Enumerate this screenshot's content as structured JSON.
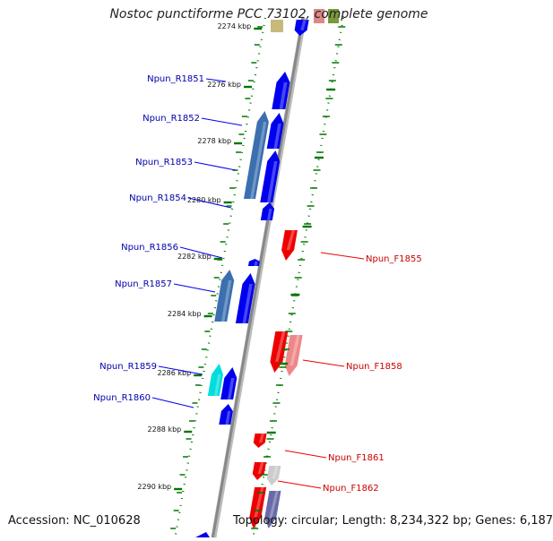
{
  "title": "Nostoc punctiforme PCC 73102, complete genome",
  "footer": {
    "accession": "Accession: NC_010628",
    "summary": "Topology: circular; Length: 8,234,322 bp; Genes: 6,187"
  },
  "colors": {
    "reverse_gene": "#0000ee",
    "forward_gene": "#ee0000",
    "reverse_label": "#0000aa",
    "forward_label": "#cc0000",
    "tick": "#007700",
    "backbone": "#888888"
  },
  "ticks": [
    {
      "label": "2274 kbp"
    },
    {
      "label": "2276 kbp"
    },
    {
      "label": "2278 kbp"
    },
    {
      "label": "2280 kbp"
    },
    {
      "label": "2282 kbp"
    },
    {
      "label": "2284 kbp"
    },
    {
      "label": "2286 kbp"
    },
    {
      "label": "2288 kbp"
    },
    {
      "label": "2290 kbp"
    }
  ],
  "reverse_genes": [
    {
      "label": "Npun_R1851"
    },
    {
      "label": "Npun_R1852"
    },
    {
      "label": "Npun_R1853"
    },
    {
      "label": "Npun_R1854"
    },
    {
      "label": "Npun_R1856"
    },
    {
      "label": "Npun_R1857"
    },
    {
      "label": "Npun_R1859"
    },
    {
      "label": "Npun_R1860"
    }
  ],
  "forward_genes": [
    {
      "label": "Npun_F1855"
    },
    {
      "label": "Npun_F1858"
    },
    {
      "label": "Npun_F1861"
    },
    {
      "label": "Npun_F1862"
    }
  ]
}
